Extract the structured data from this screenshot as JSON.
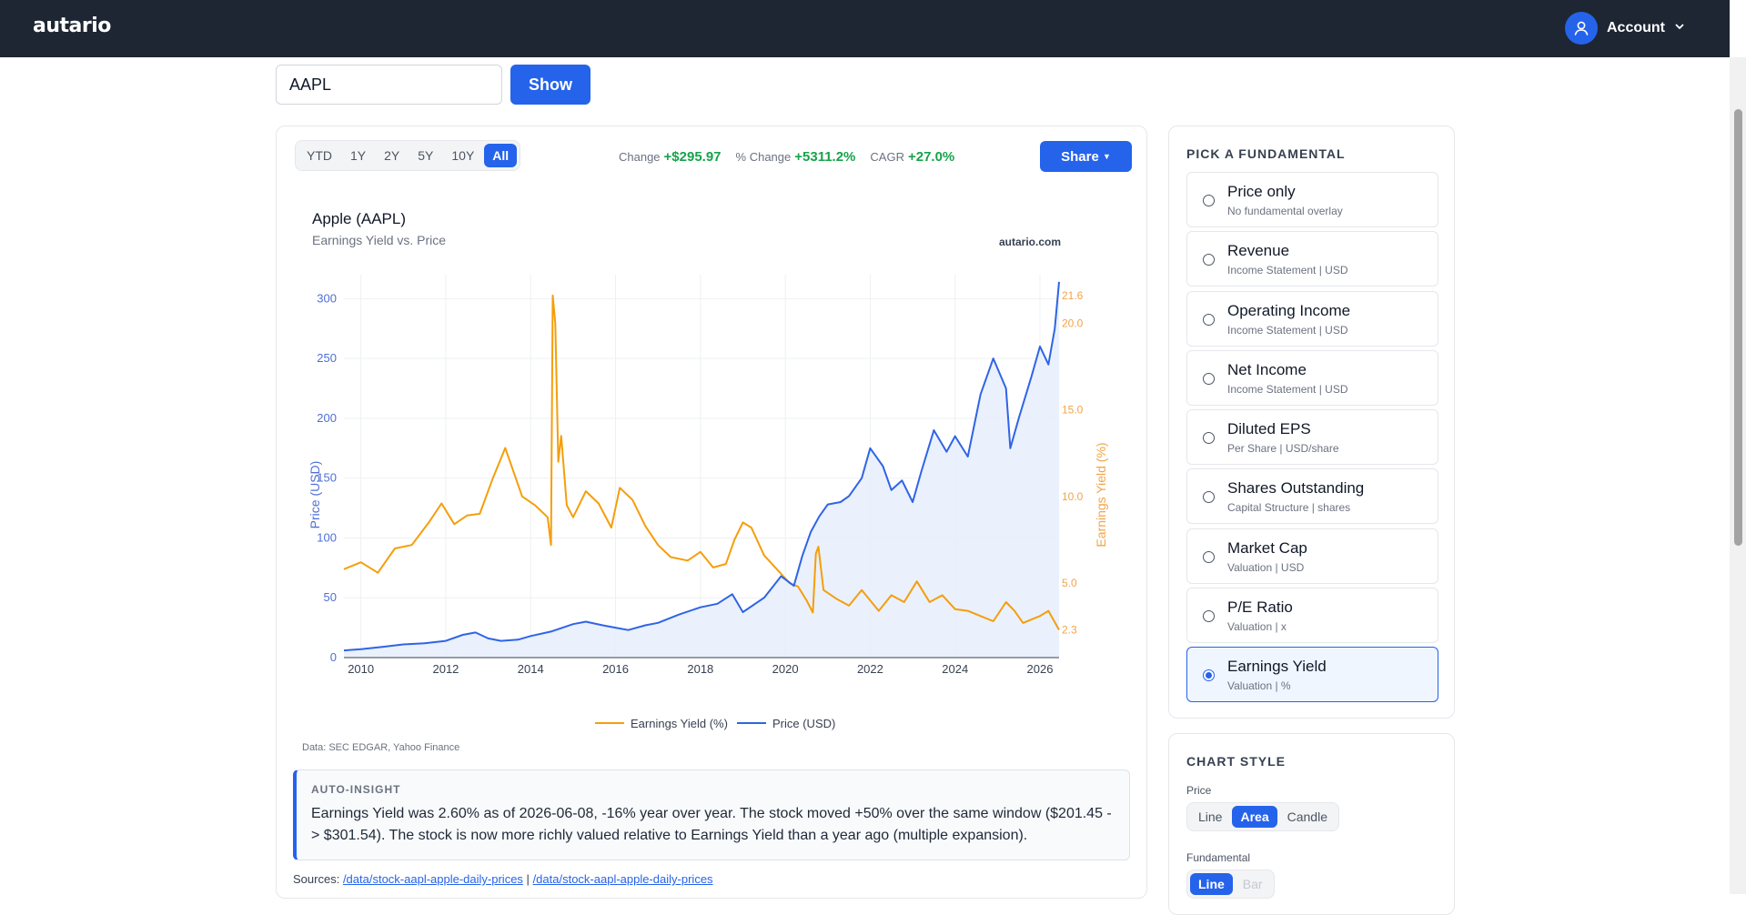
{
  "header": {
    "logo": "autario",
    "account_label": "Account"
  },
  "search": {
    "value": "AAPL",
    "show_label": "Show"
  },
  "range": {
    "options": [
      "YTD",
      "1Y",
      "2Y",
      "5Y",
      "10Y",
      "All"
    ],
    "selected": "All"
  },
  "stats": {
    "change_label": "Change",
    "change_value": "+$295.97",
    "pct_label": "% Change",
    "pct_value": "+5311.2%",
    "cagr_label": "CAGR",
    "cagr_value": "+27.0%"
  },
  "share_label": "Share",
  "chart_data": {
    "type": "line",
    "title": "Apple (AAPL)",
    "subtitle": "Earnings Yield vs. Price",
    "watermark": "autario.com",
    "xlabel": "",
    "ylabel": "Price (USD)",
    "y2label": "Earnings Yield (%)",
    "xlim": [
      2009.6,
      2026.45
    ],
    "ylim": [
      0,
      320
    ],
    "y2lim": [
      0.7,
      22.8
    ],
    "x_ticks": [
      "2010",
      "2012",
      "2014",
      "2016",
      "2018",
      "2020",
      "2022",
      "2024",
      "2026"
    ],
    "y_ticks": [
      "0",
      "50",
      "100",
      "150",
      "200",
      "250",
      "300"
    ],
    "y2_ticks": [
      "2.3",
      "5.0",
      "10.0",
      "15.0",
      "20.0",
      "21.6"
    ],
    "legend_position": "bottom",
    "legend": [
      "Earnings Yield (%)",
      "Price (USD)"
    ],
    "colors": {
      "price": "#2f64e6",
      "price_fill": "#e6eefc",
      "yield": "#f59e0b"
    },
    "series": [
      {
        "name": "Price (USD)",
        "axis": "left",
        "style": "area",
        "x": [
          2009.6,
          2010.0,
          2010.5,
          2011.0,
          2011.5,
          2012.0,
          2012.4,
          2012.7,
          2013.0,
          2013.3,
          2013.7,
          2014.0,
          2014.5,
          2015.0,
          2015.3,
          2015.7,
          2016.0,
          2016.3,
          2016.7,
          2017.0,
          2017.5,
          2018.0,
          2018.4,
          2018.75,
          2019.0,
          2019.5,
          2019.9,
          2020.2,
          2020.4,
          2020.6,
          2020.8,
          2021.0,
          2021.3,
          2021.5,
          2021.8,
          2022.0,
          2022.3,
          2022.5,
          2022.75,
          2023.0,
          2023.2,
          2023.5,
          2023.8,
          2024.0,
          2024.3,
          2024.6,
          2024.9,
          2025.2,
          2025.3,
          2025.5,
          2025.8,
          2026.0,
          2026.2,
          2026.35,
          2026.45
        ],
        "values": [
          6,
          7,
          9,
          11,
          12,
          14,
          19,
          21,
          16,
          14,
          15,
          18,
          22,
          28,
          30,
          27,
          25,
          23,
          27,
          29,
          36,
          42,
          45,
          53,
          38,
          50,
          68,
          60,
          85,
          105,
          118,
          128,
          130,
          135,
          150,
          175,
          160,
          140,
          148,
          130,
          155,
          190,
          172,
          185,
          168,
          220,
          250,
          225,
          175,
          200,
          235,
          260,
          245,
          275,
          314
        ]
      },
      {
        "name": "Earnings Yield (%)",
        "axis": "right",
        "style": "line",
        "x": [
          2009.6,
          2010.0,
          2010.4,
          2010.8,
          2011.2,
          2011.6,
          2011.9,
          2012.2,
          2012.5,
          2012.8,
          2013.1,
          2013.4,
          2013.8,
          2014.1,
          2014.4,
          2014.48,
          2014.52,
          2014.58,
          2014.65,
          2014.72,
          2014.85,
          2015.0,
          2015.3,
          2015.6,
          2015.9,
          2016.1,
          2016.4,
          2016.7,
          2017.0,
          2017.3,
          2017.7,
          2018.0,
          2018.3,
          2018.6,
          2018.8,
          2019.0,
          2019.2,
          2019.5,
          2019.8,
          2020.1,
          2020.3,
          2020.5,
          2020.65,
          2020.72,
          2020.78,
          2020.9,
          2021.2,
          2021.5,
          2021.8,
          2022.2,
          2022.5,
          2022.8,
          2023.1,
          2023.4,
          2023.7,
          2024.0,
          2024.3,
          2024.6,
          2024.9,
          2025.2,
          2025.4,
          2025.6,
          2025.8,
          2026.0,
          2026.2,
          2026.45
        ],
        "values": [
          5.8,
          6.2,
          5.6,
          7.0,
          7.2,
          8.5,
          9.6,
          8.4,
          8.9,
          9.0,
          11.0,
          12.8,
          10.0,
          9.5,
          8.8,
          7.2,
          21.6,
          20.0,
          12.0,
          13.5,
          9.5,
          8.8,
          10.3,
          9.6,
          8.2,
          10.5,
          9.8,
          8.3,
          7.2,
          6.5,
          6.3,
          6.8,
          5.9,
          6.1,
          7.5,
          8.5,
          8.2,
          6.6,
          5.8,
          5.0,
          4.8,
          4.0,
          3.3,
          6.7,
          7.1,
          4.6,
          4.1,
          3.7,
          4.6,
          3.4,
          4.3,
          3.9,
          5.1,
          3.9,
          4.3,
          3.5,
          3.4,
          3.1,
          2.8,
          3.9,
          3.4,
          2.7,
          2.9,
          3.1,
          3.4,
          2.3
        ]
      }
    ]
  },
  "data_source": "Data: SEC EDGAR, Yahoo Finance",
  "insight": {
    "title": "AUTO-INSIGHT",
    "text": "Earnings Yield was 2.60% as of 2026-06-08, -16% year over year. The stock moved +50% over the same window ($201.45 -> $301.54). The stock is now more richly valued relative to Earnings Yield than a year ago (multiple expansion)."
  },
  "sources": {
    "label": "Sources:",
    "link1": "/data/stock-aapl-apple-daily-prices",
    "separator": "|",
    "link2": "/data/stock-aapl-apple-daily-prices"
  },
  "fundamentals": {
    "title": "PICK A FUNDAMENTAL",
    "selected_index": 8,
    "items": [
      {
        "name": "Price only",
        "sub": "No fundamental overlay"
      },
      {
        "name": "Revenue",
        "sub": "Income Statement | USD"
      },
      {
        "name": "Operating Income",
        "sub": "Income Statement | USD"
      },
      {
        "name": "Net Income",
        "sub": "Income Statement | USD"
      },
      {
        "name": "Diluted EPS",
        "sub": "Per Share | USD/share"
      },
      {
        "name": "Shares Outstanding",
        "sub": "Capital Structure | shares"
      },
      {
        "name": "Market Cap",
        "sub": "Valuation | USD"
      },
      {
        "name": "P/E Ratio",
        "sub": "Valuation | x"
      },
      {
        "name": "Earnings Yield",
        "sub": "Valuation | %"
      }
    ]
  },
  "chart_style": {
    "title": "CHART STYLE",
    "price_label": "Price",
    "price_options": [
      "Line",
      "Area",
      "Candle"
    ],
    "price_selected": "Area",
    "fundamental_label": "Fundamental",
    "fundamental_options": [
      "Line",
      "Bar"
    ],
    "fundamental_selected": "Line"
  }
}
